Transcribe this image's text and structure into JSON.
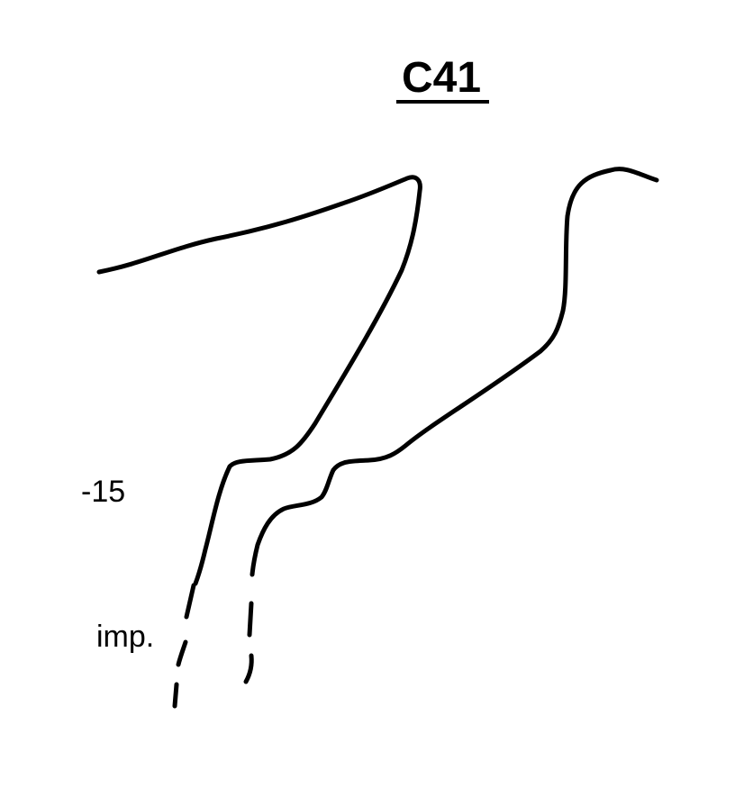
{
  "figure": {
    "title": "C41",
    "labels": {
      "depth": "-15",
      "impression": "imp."
    },
    "stroke_color": "#000000",
    "background_color": "#ffffff"
  }
}
